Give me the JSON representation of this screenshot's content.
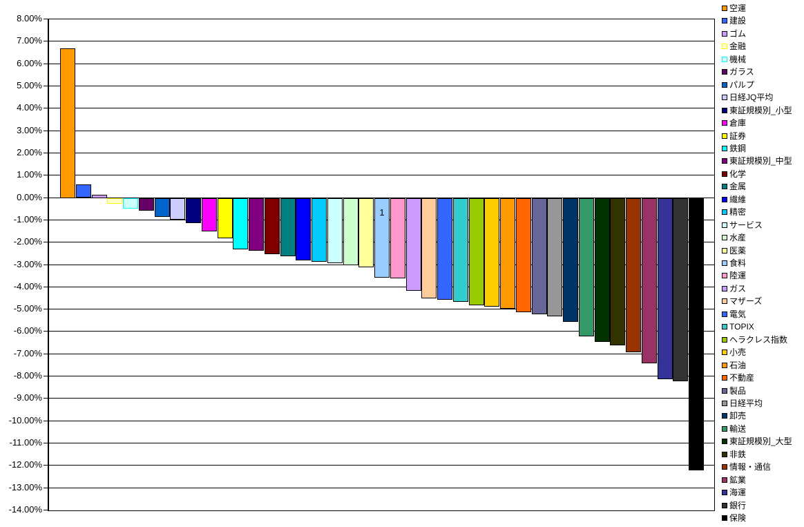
{
  "chart": {
    "y_axis": {
      "tick_labels": [
        "8.00%",
        "7.00%",
        "6.00%",
        "5.00%",
        "4.00%",
        "3.00%",
        "2.00%",
        "1.00%",
        "0.00%",
        "-1.00%",
        "-2.00%",
        "-3.00%",
        "-4.00%",
        "-5.00%",
        "-6.00%",
        "-7.00%",
        "-8.00%",
        "-9.00%",
        "-10.00%",
        "-11.00%",
        "-12.00%",
        "-13.00%",
        "-14.00%"
      ],
      "max_percent": 8,
      "min_percent": -14,
      "step_percent": 1
    }
  },
  "chart_data": {
    "type": "bar",
    "title": "",
    "xlabel": "",
    "ylabel": "",
    "ylim": [
      -14,
      8
    ],
    "y_tick_step": 1,
    "y_unit": "percent",
    "grid": true,
    "legend_position": "right",
    "series": [
      {
        "name": "空運",
        "value": 6.7,
        "color": "#FF9900"
      },
      {
        "name": "建設",
        "value": 0.6,
        "color": "#3366FF"
      },
      {
        "name": "ゴム",
        "value": 0.15,
        "color": "#CC99FF"
      },
      {
        "name": "金融",
        "value": -0.25,
        "color": "#FFFFCC",
        "border": "#FFFF00"
      },
      {
        "name": "機械",
        "value": -0.45,
        "color": "#CCFFFF",
        "border": "#00FFFF"
      },
      {
        "name": "ガラス",
        "value": -0.55,
        "color": "#660066"
      },
      {
        "name": "パルプ",
        "value": -0.85,
        "color": "#0066CC"
      },
      {
        "name": "日経JQ平均",
        "value": -0.95,
        "color": "#CCCCFF"
      },
      {
        "name": "東証規模別_小型",
        "value": -1.1,
        "color": "#000080"
      },
      {
        "name": "倉庫",
        "value": -1.5,
        "color": "#FF00FF"
      },
      {
        "name": "証券",
        "value": -1.8,
        "color": "#FFFF00"
      },
      {
        "name": "鉄鋼",
        "value": -2.3,
        "color": "#00FFFF"
      },
      {
        "name": "東証規模別_中型",
        "value": -2.35,
        "color": "#800080"
      },
      {
        "name": "化学",
        "value": -2.5,
        "color": "#800000"
      },
      {
        "name": "金属",
        "value": -2.6,
        "color": "#008080"
      },
      {
        "name": "繊維",
        "value": -2.8,
        "color": "#0000FF"
      },
      {
        "name": "精密",
        "value": -2.85,
        "color": "#00CCFF"
      },
      {
        "name": "サービス",
        "value": -2.9,
        "color": "#CCFFFF"
      },
      {
        "name": "水産",
        "value": -3.0,
        "color": "#CCFFCC"
      },
      {
        "name": "医薬",
        "value": -3.1,
        "color": "#FFFF99"
      },
      {
        "name": "食料",
        "value": -3.55,
        "color": "#99CCFF",
        "label": "1"
      },
      {
        "name": "陸運",
        "value": -3.6,
        "color": "#FF99CC"
      },
      {
        "name": "ガス",
        "value": -4.15,
        "color": "#CC99FF"
      },
      {
        "name": "マザーズ",
        "value": -4.5,
        "color": "#FFCC99"
      },
      {
        "name": "電気",
        "value": -4.55,
        "color": "#3366FF"
      },
      {
        "name": "TOPIX",
        "value": -4.65,
        "color": "#33CCCC"
      },
      {
        "name": "ヘラクレス指数",
        "value": -4.8,
        "color": "#99CC00"
      },
      {
        "name": "小売",
        "value": -4.85,
        "color": "#FFCC00"
      },
      {
        "name": "石油",
        "value": -4.95,
        "color": "#FF9900"
      },
      {
        "name": "不動産",
        "value": -5.1,
        "color": "#FF6600"
      },
      {
        "name": "製品",
        "value": -5.2,
        "color": "#666699"
      },
      {
        "name": "日経平均",
        "value": -5.3,
        "color": "#969696"
      },
      {
        "name": "卸売",
        "value": -5.55,
        "color": "#003366"
      },
      {
        "name": "輸送",
        "value": -6.2,
        "color": "#339966"
      },
      {
        "name": "東証規模別_大型",
        "value": -6.45,
        "color": "#003300"
      },
      {
        "name": "非鉄",
        "value": -6.6,
        "color": "#333300"
      },
      {
        "name": "情報・通信",
        "value": -6.9,
        "color": "#993300"
      },
      {
        "name": "鉱業",
        "value": -7.4,
        "color": "#993366"
      },
      {
        "name": "海運",
        "value": -8.1,
        "color": "#333399"
      },
      {
        "name": "銀行",
        "value": -8.2,
        "color": "#333333"
      },
      {
        "name": "保険",
        "value": -12.2,
        "color": "#000000"
      }
    ]
  }
}
